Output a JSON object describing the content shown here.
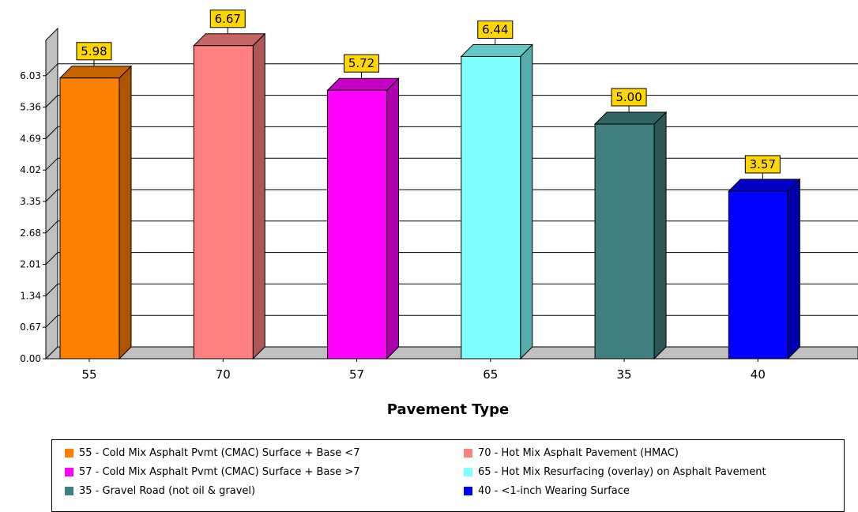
{
  "chart_data": {
    "type": "bar",
    "title": "",
    "xlabel": "Pavement Type",
    "ylabel": "",
    "categories": [
      "55",
      "70",
      "57",
      "65",
      "35",
      "40"
    ],
    "values": [
      5.98,
      6.67,
      5.72,
      6.44,
      5.0,
      3.57
    ],
    "value_labels": [
      "5.98",
      "6.67",
      "5.72",
      "6.44",
      "5.00",
      "3.57"
    ],
    "colors": [
      "#FF7F00",
      "#FF8080",
      "#FF00FF",
      "#80FFFF",
      "#408080",
      "#0000FF"
    ],
    "yticks": [
      "0.00",
      "0.67",
      "1.34",
      "2.01",
      "2.68",
      "3.35",
      "4.02",
      "4.69",
      "5.36",
      "6.03"
    ],
    "ylim": [
      0,
      6.7
    ],
    "grid": true,
    "legend_position": "bottom",
    "legend": [
      {
        "label": "55 - Cold Mix Asphalt Pvmt (CMAC) Surface + Base <7",
        "color": "#FF7F00"
      },
      {
        "label": "70 - Hot Mix Asphalt Pavement (HMAC)",
        "color": "#FF8080"
      },
      {
        "label": "57 - Cold Mix Asphalt Pvmt (CMAC) Surface + Base >7",
        "color": "#FF00FF"
      },
      {
        "label": "65 - Hot Mix Resurfacing (overlay) on Asphalt Pavement",
        "color": "#80FFFF"
      },
      {
        "label": "35 - Gravel Road (not oil & gravel)",
        "color": "#408080"
      },
      {
        "label": "40 - <1-inch Wearing Surface",
        "color": "#0000FF"
      }
    ]
  }
}
